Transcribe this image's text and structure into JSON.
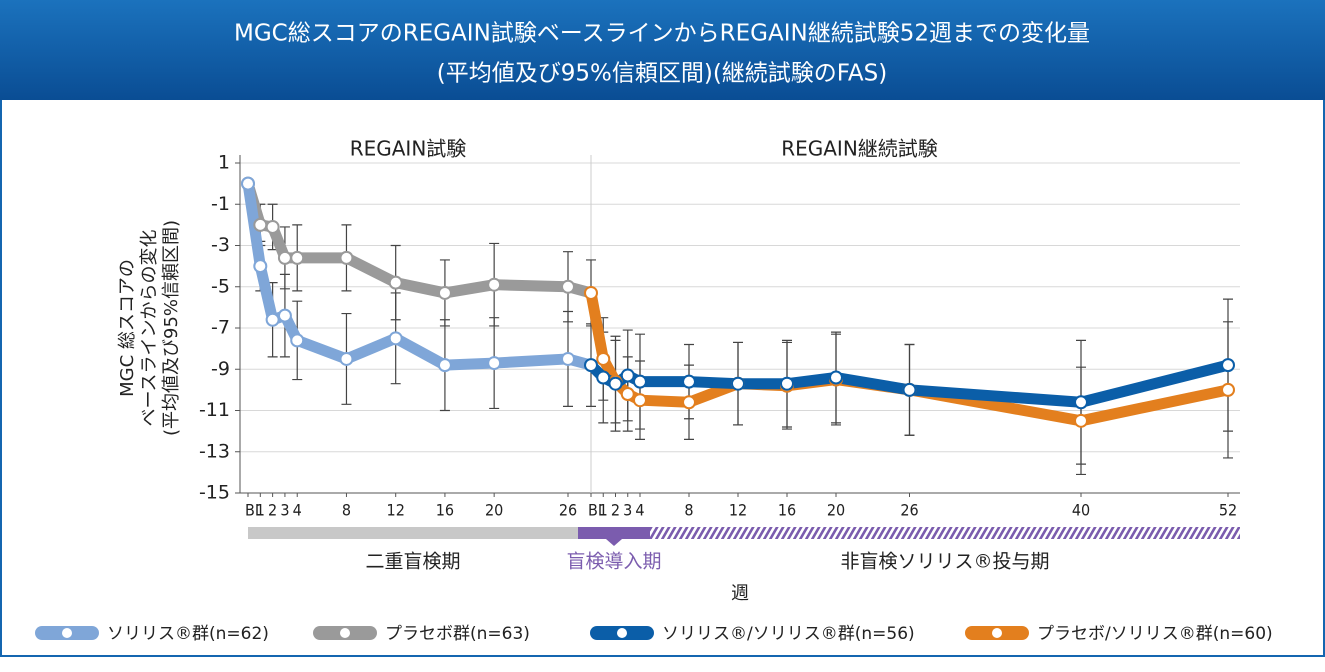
{
  "header": {
    "title_lines": [
      "MGC総スコアのREGAIN試験ベースラインからREGAIN継続試験52週までの変化量",
      "(平均値及び95%信頼区間)(継続試験のFAS)"
    ]
  },
  "chart_data": {
    "type": "line",
    "ylabel": [
      "MGC 総スコアの",
      "ベースラインからの変化",
      "(平均値及び95%信頼区間)"
    ],
    "xlabel": "週",
    "ylim": [
      -15,
      1
    ],
    "yticks": [
      1,
      -1,
      -3,
      -5,
      -7,
      -9,
      -11,
      -13,
      -15
    ],
    "grid": true,
    "periods": [
      "二重盲検期",
      "盲検導入期",
      "非盲検ソリリス®投与期"
    ],
    "segments": [
      {
        "title": "REGAIN試験",
        "xlim": [
          0,
          26
        ],
        "xticks": [
          {
            "value": 0,
            "label": "BL"
          },
          1,
          2,
          3,
          4,
          8,
          12,
          16,
          20,
          26
        ],
        "x": [
          0,
          1,
          2,
          3,
          4,
          8,
          12,
          16,
          20,
          26
        ],
        "series": [
          {
            "name": "プラセボ群(n=63)",
            "color": "#9a9a9a",
            "values": [
              0,
              -2,
              -2.1,
              -3.6,
              -3.6,
              -3.6,
              -4.8,
              -5.3,
              -4.9,
              -5.0
            ],
            "errors": [
              0,
              1.0,
              1.1,
              1.5,
              1.6,
              1.6,
              1.8,
              1.6,
              2.0,
              1.7
            ]
          },
          {
            "name": "ソリリス®群(n=62)",
            "color": "#7fa6d8",
            "values": [
              0,
              -4,
              -6.6,
              -6.4,
              -7.6,
              -8.5,
              -7.5,
              -8.8,
              -8.7,
              -8.5
            ],
            "errors": [
              0,
              1.2,
              1.8,
              2.0,
              1.9,
              2.2,
              2.2,
              2.2,
              2.2,
              2.3
            ]
          }
        ]
      },
      {
        "title": "REGAIN継続試験",
        "xlim": [
          0,
          52
        ],
        "xticks": [
          {
            "value": 0,
            "label": "BL"
          },
          1,
          2,
          3,
          4,
          8,
          12,
          16,
          20,
          26,
          40,
          52
        ],
        "x": [
          0,
          1,
          2,
          3,
          4,
          8,
          12,
          16,
          20,
          26,
          40,
          52
        ],
        "series": [
          {
            "name": "プラセボ/ソリリス®群(n=60)",
            "color": "#e37f1e",
            "values": [
              -5.3,
              -8.5,
              -9.6,
              -10.2,
              -10.5,
              -10.6,
              -9.7,
              -9.8,
              -9.5,
              -10.0,
              -11.5,
              -10.0
            ],
            "errors": [
              1.6,
              2.0,
              2.0,
              1.8,
              1.9,
              1.8,
              2.0,
              2.1,
              2.2,
              2.2,
              2.6,
              3.3
            ]
          },
          {
            "name": "ソリリス®/ソリリス®群(n=56)",
            "color": "#0b5ea8",
            "values": [
              -8.8,
              -9.4,
              -9.7,
              -9.3,
              -9.6,
              -9.6,
              -9.7,
              -9.7,
              -9.4,
              -10.0,
              -10.6,
              -8.8
            ],
            "errors": [
              2.0,
              2.2,
              2.3,
              2.2,
              2.3,
              1.8,
              2.0,
              2.1,
              2.2,
              2.2,
              3.0,
              3.2
            ]
          }
        ]
      }
    ]
  }
}
